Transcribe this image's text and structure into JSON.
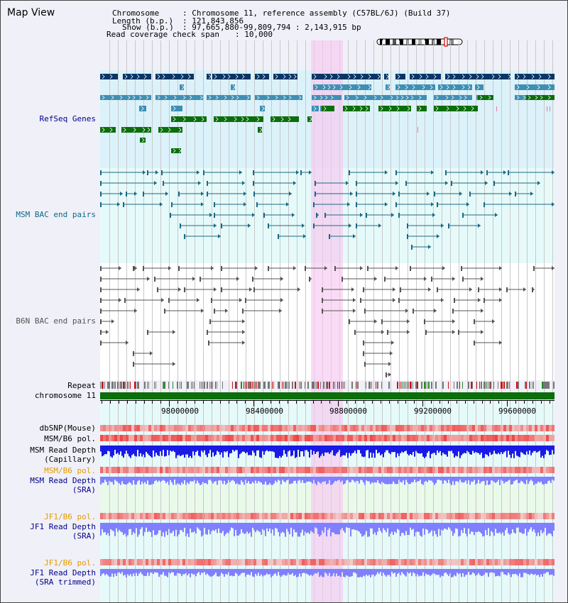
{
  "header": {
    "title": "Map View",
    "chromosome_label": "Chromosome",
    "chromosome_value": ": Chromosome 11, reference assembly (C57BL/6J) (Build 37)",
    "length_label": "Length (b.p.)",
    "length_value": ": 121,843,856",
    "show_label": "Show (b.p.)",
    "show_value": ": 97,665,880-99,809,794 : 2,143,915 bp",
    "coverage_label": "Read coverage check span",
    "coverage_value": ": 10,000"
  },
  "tracks": {
    "refseq": "RefSeq Genes",
    "msm_bac": "MSM BAC end pairs",
    "b6n_bac": "B6N BAC end pairs",
    "repeat": "Repeat",
    "chromosome": "chromosome 11",
    "dbsnp": "dbSNP(Mouse)",
    "msm_b6_pol_1": "MSM/B6 pol.",
    "msm_read_depth_cap_1": "MSM Read Depth",
    "msm_read_depth_cap_2": "(Capillary)",
    "msm_b6_pol_2": "MSM/B6 pol.",
    "msm_read_depth_sra_1": "MSM Read Depth",
    "msm_read_depth_sra_2": "(SRA)",
    "jf1_b6_pol_1": "JF1/B6 pol.",
    "jf1_read_depth_1": "JF1 Read Depth",
    "jf1_read_depth_2": "(SRA)",
    "jf1_b6_pol_2": "JF1/B6 pol.",
    "jf1_read_depth_trim_1": "JF1 Read Depth",
    "jf1_read_depth_trim_2": "(SRA trimmed)"
  },
  "axis": {
    "ticks": [
      "98000000",
      "98400000",
      "98800000",
      "99200000",
      "99600000"
    ]
  },
  "colors": {
    "refseq_navy": "#0a3566",
    "refseq_blue": "#3f8fb3",
    "refseq_green": "#0b6e0b",
    "msm_bac": "#1a6a86",
    "b6n_bac": "#555555",
    "highlight": "#f8d8f0",
    "depth_blue": "#1a1ae6",
    "depth_light": "#8080ff",
    "snp_red": "#e83030",
    "label_navy": "#00008b",
    "label_teal": "#0b6a86",
    "label_orange": "#e69a00"
  }
}
